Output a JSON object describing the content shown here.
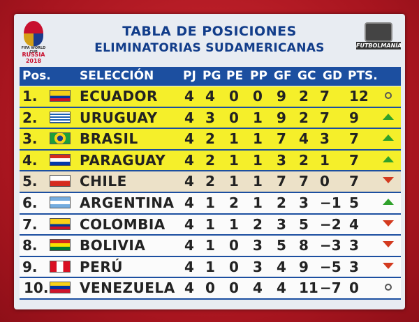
{
  "header": {
    "title": "TABLA DE POSICIONES",
    "subtitle": "ELIMINATORIAS SUDAMERICANAS",
    "wc_logo_text1": "FIFA WORLD CUP",
    "wc_logo_text2": "RUSSIA 2018",
    "channel_logo": "FUTBOLMANÍA"
  },
  "columns": [
    "Pos.",
    "SELECCIÓN",
    "PJ",
    "PG",
    "PE",
    "PP",
    "GF",
    "GC",
    "GD",
    "PTS."
  ],
  "rows": [
    {
      "pos": "1.",
      "team": "ECUADOR",
      "pj": "4",
      "pg": "4",
      "pe": "0",
      "pp": "0",
      "gf": "9",
      "gc": "2",
      "gd": "7",
      "pts": "12",
      "trend": "same",
      "band": "y",
      "flag": "ecuador"
    },
    {
      "pos": "2.",
      "team": "URUGUAY",
      "pj": "4",
      "pg": "3",
      "pe": "0",
      "pp": "1",
      "gf": "9",
      "gc": "2",
      "gd": "7",
      "pts": "9",
      "trend": "up",
      "band": "y",
      "flag": "uruguay"
    },
    {
      "pos": "3.",
      "team": "BRASIL",
      "pj": "4",
      "pg": "2",
      "pe": "1",
      "pp": "1",
      "gf": "7",
      "gc": "4",
      "gd": "3",
      "pts": "7",
      "trend": "up",
      "band": "y",
      "flag": "brasil"
    },
    {
      "pos": "4.",
      "team": "PARAGUAY",
      "pj": "4",
      "pg": "2",
      "pe": "1",
      "pp": "1",
      "gf": "3",
      "gc": "2",
      "gd": "1",
      "pts": "7",
      "trend": "up",
      "band": "y",
      "flag": "paraguay"
    },
    {
      "pos": "5.",
      "team": "CHILE",
      "pj": "4",
      "pg": "2",
      "pe": "1",
      "pp": "1",
      "gf": "7",
      "gc": "7",
      "gd": "0",
      "pts": "7",
      "trend": "down",
      "band": "b",
      "flag": "chile"
    },
    {
      "pos": "6.",
      "team": "ARGENTINA",
      "pj": "4",
      "pg": "1",
      "pe": "2",
      "pp": "1",
      "gf": "2",
      "gc": "3",
      "gd": "−1",
      "pts": "5",
      "trend": "up",
      "band": "w",
      "flag": "argentina"
    },
    {
      "pos": "7.",
      "team": "COLOMBIA",
      "pj": "4",
      "pg": "1",
      "pe": "1",
      "pp": "2",
      "gf": "3",
      "gc": "5",
      "gd": "−2",
      "pts": "4",
      "trend": "down",
      "band": "w",
      "flag": "colombia"
    },
    {
      "pos": "8.",
      "team": "BOLIVIA",
      "pj": "4",
      "pg": "1",
      "pe": "0",
      "pp": "3",
      "gf": "5",
      "gc": "8",
      "gd": "−3",
      "pts": "3",
      "trend": "down",
      "band": "w",
      "flag": "bolivia"
    },
    {
      "pos": "9.",
      "team": "PERÚ",
      "pj": "4",
      "pg": "1",
      "pe": "0",
      "pp": "3",
      "gf": "4",
      "gc": "9",
      "gd": "−5",
      "pts": "3",
      "trend": "down",
      "band": "w",
      "flag": "peru"
    },
    {
      "pos": "10.",
      "team": "VENEZUELA",
      "pj": "4",
      "pg": "0",
      "pe": "0",
      "pp": "4",
      "gf": "4",
      "gc": "11",
      "gd": "−7",
      "pts": "0",
      "trend": "same",
      "band": "w",
      "flag": "venezuela"
    }
  ],
  "colors": {
    "header_bg": "#1c4fa0",
    "title": "#123d8a",
    "qualify": "#f5ef2a",
    "playoff": "#ece1c8",
    "up": "#2fa12b",
    "down": "#d33a1f"
  }
}
